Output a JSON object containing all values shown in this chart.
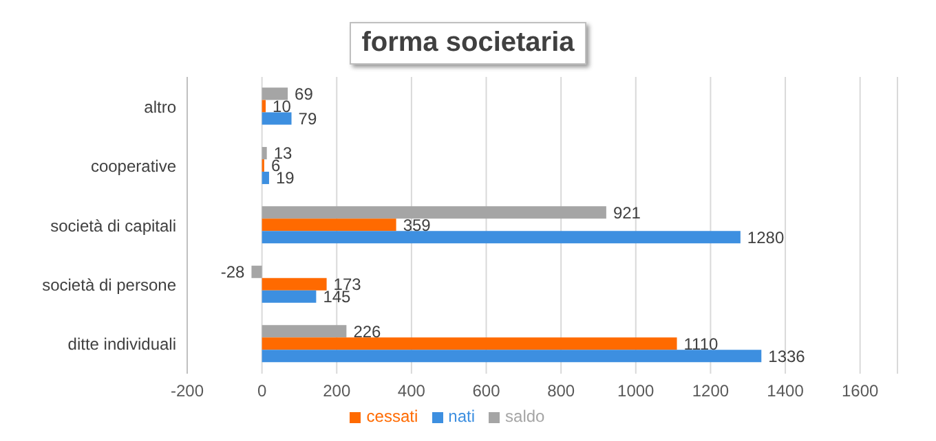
{
  "chart_data": {
    "type": "bar",
    "orientation": "horizontal",
    "title": "forma societaria",
    "categories": [
      "altro",
      "cooperative",
      "società di capitali",
      "società di persone",
      "ditte individuali"
    ],
    "series": [
      {
        "name": "saldo",
        "color": "#a5a5a5",
        "values": [
          69,
          13,
          921,
          -28,
          226
        ]
      },
      {
        "name": "cessati",
        "color": "#ff6a00",
        "values": [
          10,
          6,
          359,
          173,
          1110
        ]
      },
      {
        "name": "nati",
        "color": "#3d8fe0",
        "values": [
          79,
          19,
          1280,
          145,
          1336
        ]
      }
    ],
    "xlim": [
      -200,
      1700
    ],
    "xticks": [
      -200,
      0,
      200,
      400,
      600,
      800,
      1000,
      1200,
      1400,
      1600
    ],
    "grid": "x",
    "legend": "bottom",
    "data_labels": true
  }
}
